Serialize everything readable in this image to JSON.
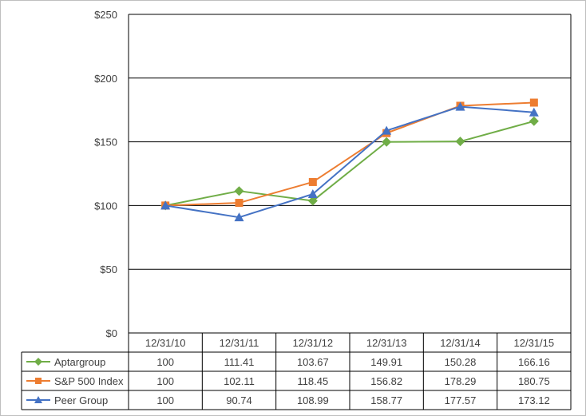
{
  "chart_data": {
    "type": "line",
    "categories": [
      "12/31/10",
      "12/31/11",
      "12/31/12",
      "12/31/13",
      "12/31/14",
      "12/31/15"
    ],
    "y_ticks": [
      "$0",
      "$50",
      "$100",
      "$150",
      "$200",
      "$250"
    ],
    "ylim": [
      0,
      250
    ],
    "grid": true,
    "legend": "data table below chart",
    "series": [
      {
        "name": "Aptargroup",
        "color": "#70ad47",
        "marker": "diamond",
        "values": [
          100,
          111.41,
          103.67,
          149.91,
          150.28,
          166.16
        ],
        "labels": [
          "100",
          "111.41",
          "103.67",
          "149.91",
          "150.28",
          "166.16"
        ]
      },
      {
        "name": "S&P 500 Index",
        "color": "#ed7d31",
        "marker": "square",
        "values": [
          100,
          102.11,
          118.45,
          156.82,
          178.29,
          180.75
        ],
        "labels": [
          "100",
          "102.11",
          "118.45",
          "156.82",
          "178.29",
          "180.75"
        ]
      },
      {
        "name": "Peer Group",
        "color": "#4472c4",
        "marker": "triangle",
        "values": [
          100,
          90.74,
          108.99,
          158.77,
          177.57,
          173.12
        ],
        "labels": [
          "100",
          "90.74",
          "108.99",
          "158.77",
          "177.57",
          "173.12"
        ]
      }
    ]
  }
}
